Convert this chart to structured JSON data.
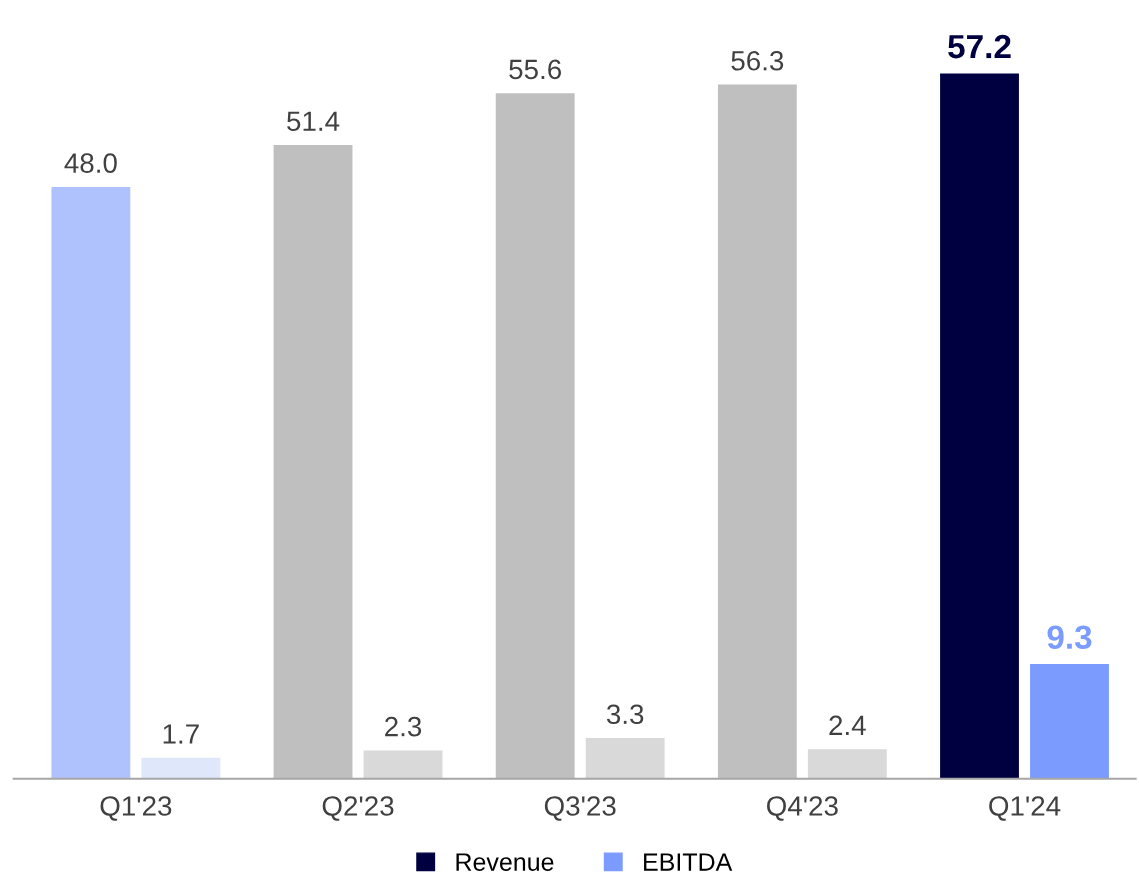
{
  "chart_data": {
    "type": "bar",
    "categories": [
      "Q1'23",
      "Q2'23",
      "Q3'23",
      "Q4'23",
      "Q1'24"
    ],
    "series": [
      {
        "name": "Revenue",
        "color": "#000040",
        "colors": [
          "#b0c2fd",
          "#bfbfbf",
          "#bfbfbf",
          "#bfbfbf",
          "#000040"
        ],
        "values": [
          48.0,
          51.4,
          55.6,
          56.3,
          57.2
        ],
        "value_labels": [
          "48.0",
          "51.4",
          "55.6",
          "56.3",
          "57.2"
        ]
      },
      {
        "name": "EBITDA",
        "color": "#7b9bff",
        "colors": [
          "#dfe7fb",
          "#d9d9d9",
          "#d9d9d9",
          "#d9d9d9",
          "#7b9bff"
        ],
        "values": [
          1.7,
          2.3,
          3.3,
          2.4,
          9.3
        ],
        "value_labels": [
          "1.7",
          "2.3",
          "3.3",
          "2.4",
          "9.3"
        ]
      }
    ],
    "legend": "bottom",
    "grid": false
  }
}
